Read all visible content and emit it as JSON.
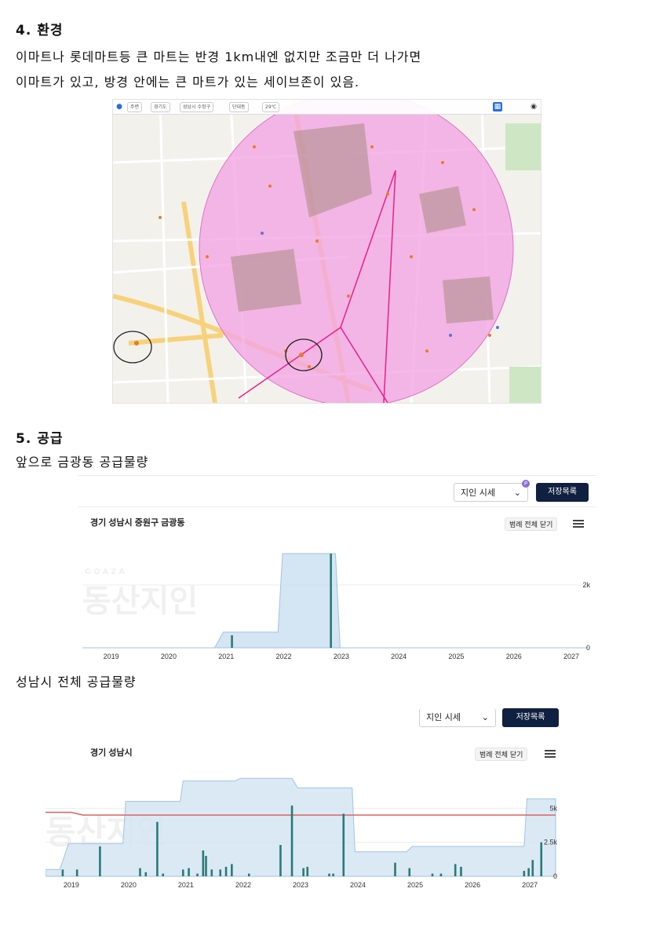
{
  "section4": {
    "heading": "4. 환경",
    "line1": "이마트나 롯데마트등 큰 마트는 반경 1km내엔 없지만 조금만 더 나가면",
    "line2": "이마트가 있고, 방경 안에는 큰 마트가 있는 세이브존이 있음."
  },
  "map": {
    "breadcrumb": [
      "주변",
      "경기도",
      "성남시 수정구",
      "단대동",
      "29℃"
    ],
    "circle_color": "#f3a6e3",
    "route_color": "#e8208c"
  },
  "section5": {
    "heading": "5. 공급",
    "sub1": "앞으로 금광동 공급물량",
    "sub2": "성남시 전체 공급물량"
  },
  "toolbar": {
    "select_label": "지인 시세",
    "save_label": "저장목록",
    "badge": "P",
    "legend_close": "범례 전체 닫기"
  },
  "watermark": {
    "small": "GOAZA",
    "big": "동산지인"
  },
  "chart_data": [
    {
      "type": "area",
      "title": "경기 성남시 중원구 금광동",
      "ylabel": "",
      "xlabel": "",
      "y_ticks": [
        "2k",
        "0"
      ],
      "x_ticks": [
        "2019",
        "2020",
        "2021",
        "2022",
        "2023",
        "2024",
        "2025",
        "2026",
        "2027"
      ],
      "xlim": [
        2018.5,
        2027.3
      ],
      "ylim": [
        0,
        3300
      ],
      "series": [
        {
          "kind": "area",
          "x": [
            2018.5,
            2020.8,
            2020.95,
            2021.15,
            2021.9,
            2021.98,
            2022.9,
            2022.98,
            2027.3
          ],
          "values": [
            0,
            0,
            500,
            500,
            500,
            3000,
            3000,
            0,
            0
          ]
        },
        {
          "kind": "bars",
          "x": [
            2021.1,
            2022.82
          ],
          "values": [
            400,
            3000
          ]
        }
      ],
      "colors": {
        "area_fill": "#cde0f1",
        "area_line": "#9fc3e4",
        "bar": "#2a7a78"
      }
    },
    {
      "type": "area",
      "title": "경기 성남시",
      "ylabel": "",
      "xlabel": "",
      "y_ticks": [
        "5k",
        "2.5k",
        "0"
      ],
      "x_ticks": [
        "2019",
        "2020",
        "2021",
        "2022",
        "2023",
        "2024",
        "2025",
        "2026",
        "2027"
      ],
      "xlim": [
        2018.55,
        2027.45
      ],
      "ylim": [
        0,
        7500
      ],
      "series": [
        {
          "kind": "area",
          "x": [
            2018.55,
            2018.8,
            2018.95,
            2019.25,
            2019.9,
            2019.95,
            2020.9,
            2020.95,
            2021.85,
            2021.95,
            2022.85,
            2022.95,
            2023.9,
            2023.95,
            2024.85,
            2024.95,
            2026.9,
            2026.95,
            2027.45
          ],
          "values": [
            500,
            500,
            2400,
            2400,
            2400,
            5500,
            5500,
            7000,
            7000,
            7200,
            7200,
            6500,
            6500,
            1800,
            1800,
            2200,
            2200,
            5700,
            5700
          ]
        },
        {
          "kind": "line",
          "x": [
            2018.55,
            2019.0,
            2019.2,
            2027.45
          ],
          "values": [
            4700,
            4700,
            4500,
            4500
          ]
        },
        {
          "kind": "bars",
          "x": [
            2018.85,
            2019.1,
            2019.5,
            2020.2,
            2020.3,
            2020.5,
            2020.6,
            2020.95,
            2021.05,
            2021.2,
            2021.3,
            2021.35,
            2021.45,
            2021.6,
            2021.7,
            2021.8,
            2022.1,
            2022.65,
            2022.85,
            2023.05,
            2023.12,
            2023.5,
            2023.57,
            2023.75,
            2024.65,
            2024.9,
            2025.3,
            2025.45,
            2025.7,
            2025.8,
            2026.9,
            2026.98,
            2027.05,
            2027.2
          ],
          "values": [
            500,
            500,
            2200,
            600,
            300,
            4000,
            200,
            500,
            600,
            200,
            1900,
            1500,
            500,
            500,
            700,
            900,
            200,
            2300,
            5200,
            600,
            700,
            200,
            200,
            4600,
            1000,
            600,
            200,
            200,
            900,
            700,
            400,
            600,
            1200,
            2500
          ]
        }
      ],
      "colors": {
        "area_fill": "#d5e5f3",
        "area_line": "#9fc3e4",
        "line": "#e06060",
        "bar": "#2a7a78"
      }
    }
  ]
}
